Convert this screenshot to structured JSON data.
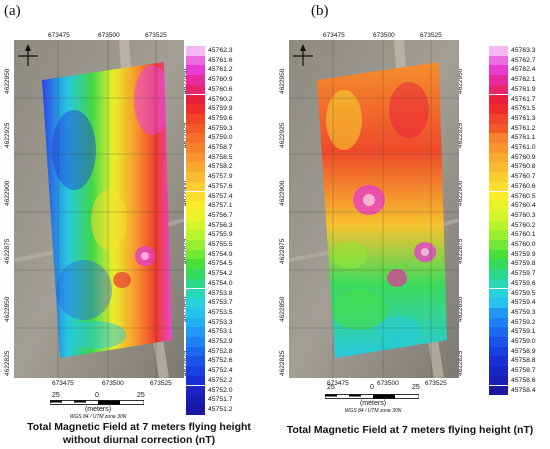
{
  "panels": [
    {
      "label": "(a)",
      "x_ticks": [
        "673475",
        "673500",
        "673525"
      ],
      "y_ticks": [
        "4622950",
        "4622925",
        "4622900",
        "4622875",
        "4622850",
        "4622825"
      ],
      "legend": [
        "45762.3",
        "45761.6",
        "45761.2",
        "45760.9",
        "45760.6",
        "45760.2",
        "45759.9",
        "45759.6",
        "45759.3",
        "45759.0",
        "45758.7",
        "45758.5",
        "45758.2",
        "45757.9",
        "45757.6",
        "45757.4",
        "45757.1",
        "45756.7",
        "45756.3",
        "45755.9",
        "45755.5",
        "45754.9",
        "45754.5",
        "45754.2",
        "45754.0",
        "45753.8",
        "45753.7",
        "45753.5",
        "45753.3",
        "45753.1",
        "45752.9",
        "45752.8",
        "45752.6",
        "45752.4",
        "45752.2",
        "45752.0",
        "45751.7",
        "45751.2"
      ],
      "caption_line1": "Total Magnetic Field at 7 meters flying height",
      "caption_line2": "without diurnal correction (nT)"
    },
    {
      "label": "(b)",
      "x_ticks": [
        "673475",
        "673500",
        "673525"
      ],
      "y_ticks": [
        "4622950",
        "4622925",
        "4622900",
        "4622875",
        "4622850",
        "4622825"
      ],
      "legend": [
        "45763.3",
        "45762.7",
        "45762.4",
        "45762.1",
        "45761.9",
        "45761.7",
        "45761.5",
        "45761.3",
        "45761.2",
        "45761.1",
        "45761.0",
        "45760.9",
        "45760.8",
        "45760.7",
        "45760.6",
        "45760.5",
        "45760.4",
        "45760.3",
        "45760.2",
        "45760.1",
        "45760.0",
        "45759.9",
        "45759.8",
        "45759.7",
        "45759.6",
        "45759.5",
        "45759.4",
        "45759.3",
        "45759.2",
        "45759.1",
        "45759.0",
        "45758.9",
        "45758.8",
        "45758.7",
        "45758.6",
        "45758.4"
      ],
      "caption_line1": "Total Magnetic Field at 7 meters flying height (nT)",
      "caption_line2": ""
    }
  ],
  "scalebar": {
    "labels": [
      "25",
      "0",
      "25"
    ],
    "units": "(meters)",
    "projection": "WGS 84 / UTM zone 30N"
  },
  "legend_colors": [
    "#f6b6f2",
    "#ea6de0",
    "#e83cd0",
    "#e82a9f",
    "#e8246a",
    "#ea1f3c",
    "#ef2c2b",
    "#f2452a",
    "#f4592a",
    "#f66e2c",
    "#f7822e",
    "#f8952f",
    "#f9a830",
    "#fabb30",
    "#fbcd30",
    "#fbde2f",
    "#f8ec2c",
    "#eaf22a",
    "#d3f52a",
    "#b8f42c",
    "#97ef30",
    "#6fe836",
    "#49e03c",
    "#34db5b",
    "#2cd98a",
    "#2ad7b5",
    "#27d2dc",
    "#25c4ef",
    "#23b0f2",
    "#2198f3",
    "#1e80f1",
    "#1c68ee",
    "#1b52e8",
    "#1a3fe0",
    "#1a30d4",
    "#1a25c4",
    "#1a1db3",
    "#1a18a0"
  ]
}
